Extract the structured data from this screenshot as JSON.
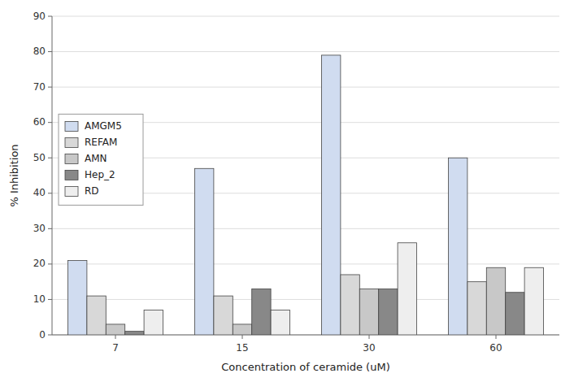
{
  "chart_data": {
    "type": "bar",
    "xlabel": "Concentration of ceramide (uM)",
    "ylabel": "% Inhibition",
    "categories": [
      "7",
      "15",
      "30",
      "60"
    ],
    "series": [
      {
        "name": "AMGM5",
        "color": "#d0dcf0",
        "values": [
          21,
          47,
          79,
          50
        ]
      },
      {
        "name": "REFAM",
        "color": "#d8d8d8",
        "values": [
          11,
          11,
          17,
          15
        ]
      },
      {
        "name": "AMN",
        "color": "#c8c8c8",
        "values": [
          3,
          3,
          13,
          19
        ]
      },
      {
        "name": "Hep_2",
        "color": "#888888",
        "values": [
          1,
          13,
          13,
          12
        ]
      },
      {
        "name": "RD",
        "color": "#eeeeee",
        "values": [
          7,
          7,
          26,
          19
        ]
      }
    ],
    "ylim": [
      0,
      90
    ],
    "yticks": [
      0,
      10,
      20,
      30,
      40,
      50,
      60,
      70,
      80,
      90
    ],
    "grid": true,
    "legend": "left"
  }
}
